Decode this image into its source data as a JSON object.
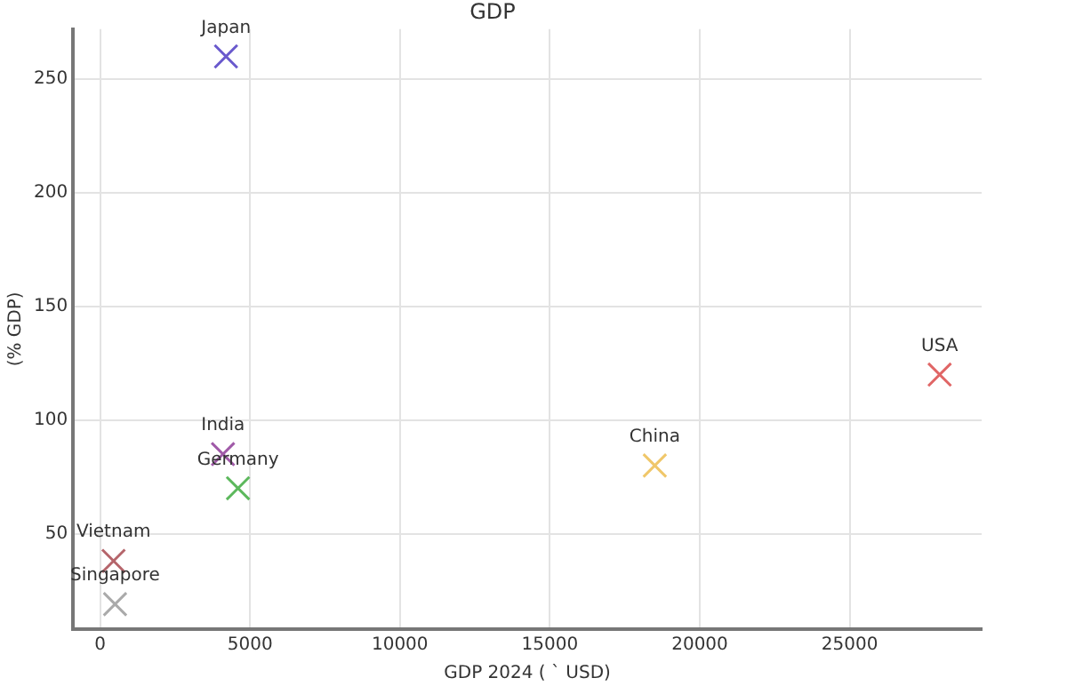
{
  "chart_data": {
    "type": "scatter",
    "title": "GDP",
    "xlabel": "GDP 2024 ( ` USD)",
    "ylabel": "(% GDP)",
    "x": [
      4200,
      4100,
      4600,
      450,
      500,
      18500,
      28000
    ],
    "series": [
      {
        "values": [
          260,
          85,
          70,
          38,
          19,
          80,
          120
        ],
        "colors": [
          "#6a5acd",
          "#a05aa8",
          "#5cb85c",
          "#b5656b",
          "#aaaaaa",
          "#f0c76a",
          "#e06666"
        ]
      }
    ],
    "annotations": [
      {
        "text": "Japan",
        "x": 4200,
        "y": 260
      },
      {
        "text": "India",
        "x": 4100,
        "y": 85
      },
      {
        "text": "Germany",
        "x": 4600,
        "y": 70
      },
      {
        "text": "Vietnam",
        "x": 450,
        "y": 38
      },
      {
        "text": "Singapore",
        "x": 500,
        "y": 19
      },
      {
        "text": "China",
        "x": 18500,
        "y": 80
      },
      {
        "text": "USA",
        "x": 28000,
        "y": 120
      }
    ],
    "xlim": [
      -900,
      29400
    ],
    "ylim": [
      8,
      272
    ],
    "xticks": [
      0,
      5000,
      10000,
      15000,
      20000,
      25000
    ],
    "yticks": [
      50,
      100,
      150,
      200,
      250
    ],
    "grid": true,
    "marker": "cross",
    "legend": false
  }
}
